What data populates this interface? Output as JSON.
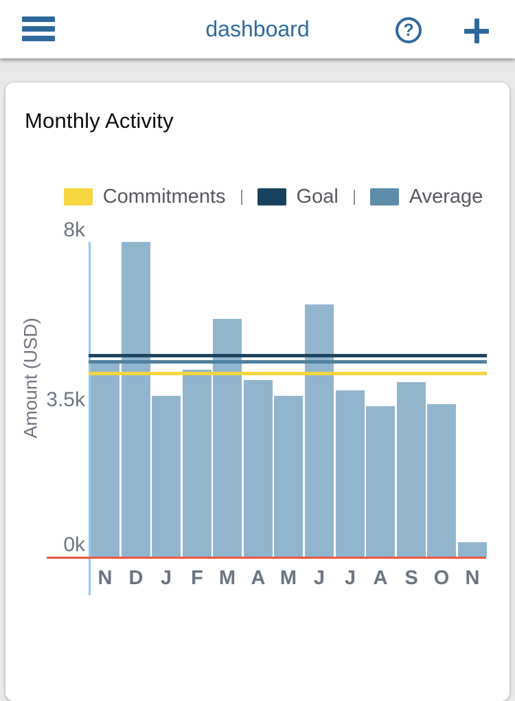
{
  "header": {
    "title": "dashboard",
    "icons": {
      "menu": "hamburger-menu",
      "help": "?",
      "add": "plus"
    }
  },
  "card": {
    "title": "Monthly Activity"
  },
  "chart_data": {
    "type": "bar",
    "title": "Monthly Activity",
    "ylabel": "Amount (USD)",
    "units": "USD thousands",
    "categories": [
      "N",
      "D",
      "J",
      "F",
      "M",
      "A",
      "M",
      "J",
      "J",
      "A",
      "S",
      "O",
      "N"
    ],
    "values": [
      4.75,
      7.75,
      3.95,
      4.6,
      5.85,
      4.35,
      3.95,
      6.2,
      4.1,
      3.7,
      4.3,
      3.75,
      0.35
    ],
    "bar_color": "#92b5ce",
    "ylim": [
      0,
      8
    ],
    "grid": false,
    "yticks": [
      {
        "label": "0k",
        "value": 0
      },
      {
        "label": "3.5k",
        "value": 3.5
      },
      {
        "label": "8k",
        "value": 8
      }
    ],
    "legend_position": "top",
    "legend": [
      {
        "label": "Commitments",
        "color": "#f5d640"
      },
      {
        "label": "Goal",
        "color": "#17425f"
      },
      {
        "label": "Average",
        "color": "#5d8cab"
      }
    ],
    "reference_lines": [
      {
        "name": "Goal",
        "value": 4.95,
        "color": "#1d4560"
      },
      {
        "name": "Average",
        "value": 4.8,
        "color": "#50809f"
      },
      {
        "name": "Commitments",
        "value": 4.5,
        "color": "#f5d640"
      }
    ],
    "baseline_color": "#e95545",
    "axis_color": "#97c9ed"
  }
}
